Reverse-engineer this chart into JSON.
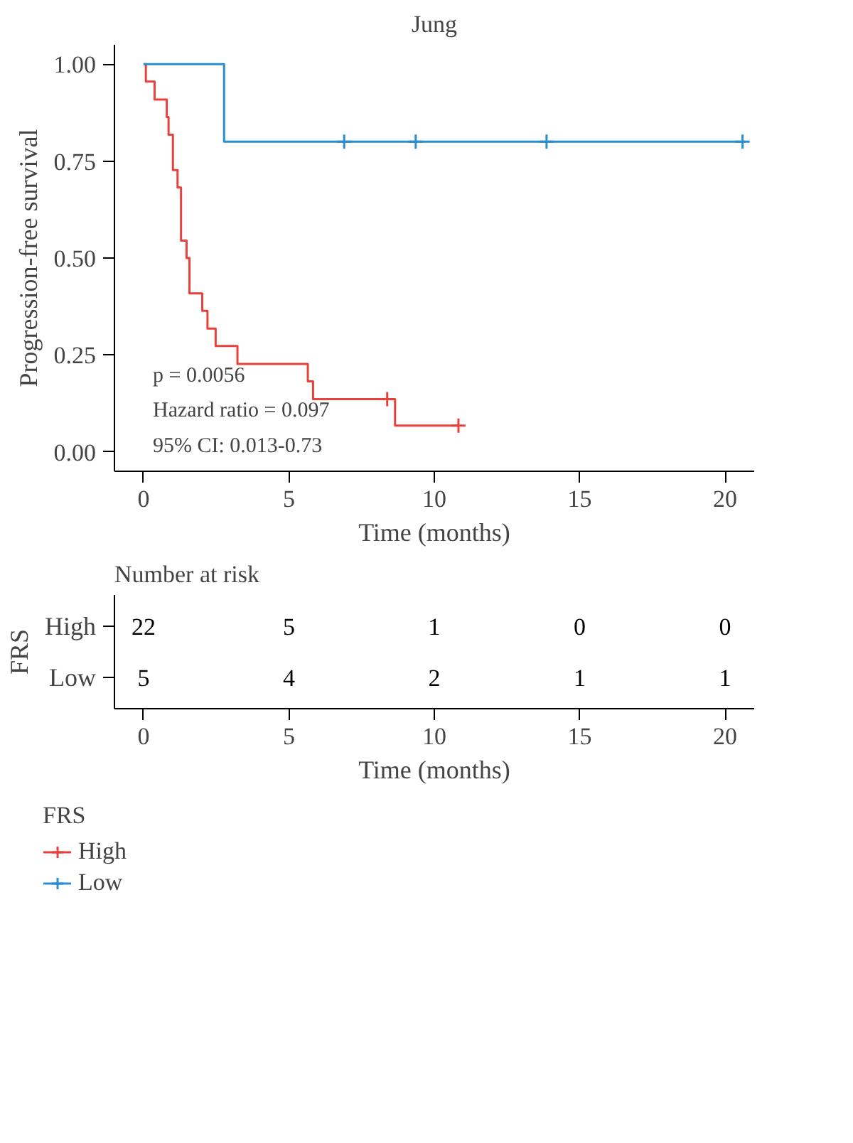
{
  "chart_data": [
    {
      "type": "step",
      "title": "Jung",
      "xlabel": "Time (months)",
      "ylabel": "Progression-free survival",
      "xlim": [
        -1,
        21
      ],
      "xticks": [
        0,
        5,
        10,
        15,
        20
      ],
      "ylim": [
        -0.05,
        1.05
      ],
      "yticks": [
        {
          "value": 0,
          "label": "0.00"
        },
        {
          "value": 0.25,
          "label": "0.25"
        },
        {
          "value": 0.5,
          "label": "0.50"
        },
        {
          "value": 0.75,
          "label": "0.75"
        },
        {
          "value": 1,
          "label": "1.00"
        }
      ],
      "grid": false,
      "legend": "bottom",
      "legend_title": "FRS",
      "line_style": "solid",
      "annotations": [
        "p = 0.0056",
        "Hazard ratio = 0.097",
        "95% CI: 0.013-0.73"
      ],
      "series": [
        {
          "name": "High",
          "color": "#e8403a",
          "x": [
            0,
            0.08,
            0.38,
            0.8,
            0.86,
            1.01,
            1.17,
            1.29,
            1.48,
            1.58,
            2.02,
            2.2,
            2.48,
            3.23,
            5.65,
            5.83,
            8.65,
            10.83
          ],
          "values": [
            1,
            0.955,
            0.909,
            0.864,
            0.818,
            0.727,
            0.682,
            0.545,
            0.5,
            0.409,
            0.364,
            0.318,
            0.273,
            0.227,
            0.182,
            0.136,
            0.068,
            0.068
          ]
        },
        {
          "name": "Low",
          "color": "#2a8fd1",
          "x": [
            0,
            2.77,
            20.7
          ],
          "values": [
            1,
            0.8,
            0.8
          ]
        },
        {
          "type": "scatter",
          "marker": "cross",
          "color": "#e8403a",
          "x": [
            8.38,
            10.83
          ],
          "values": [
            0.136,
            0.068
          ]
        },
        {
          "type": "scatter",
          "marker": "cross",
          "color": "#2a8fd1",
          "x": [
            6.9,
            9.36,
            13.86,
            20.6
          ],
          "values": [
            0.8,
            0.8,
            0.8,
            0.8
          ]
        }
      ]
    },
    {
      "type": "heatmap",
      "title": "Number at risk",
      "xlabel": "Time (months)",
      "ylabel": "FRS",
      "categories": [
        "0",
        "5",
        "10",
        "15",
        "20"
      ],
      "y_categories": [
        "High",
        "Low"
      ],
      "data_labels": true,
      "cells": [
        [
          22,
          5,
          1,
          0,
          0
        ],
        [
          5,
          4,
          2,
          1,
          1
        ]
      ]
    }
  ]
}
